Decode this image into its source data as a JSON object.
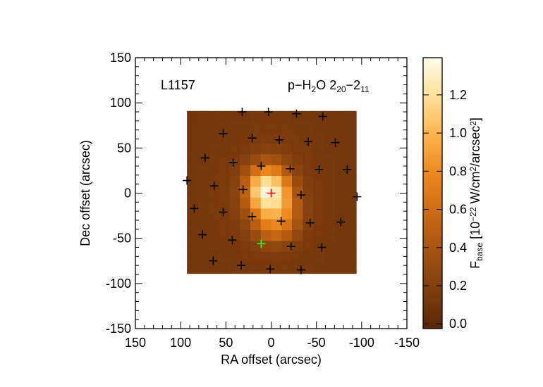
{
  "chart_data": {
    "type": "heatmap",
    "xlabel": "RA offset (arcsec)",
    "ylabel": "Dec offset (arcsec)",
    "xlim": [
      150,
      -150
    ],
    "ylim": [
      -150,
      150
    ],
    "xticks": [
      150,
      100,
      50,
      0,
      -50,
      -100,
      -150
    ],
    "yticks": [
      -150,
      -100,
      -50,
      0,
      50,
      100,
      150
    ],
    "minor_per_major": 5,
    "annotations": [
      {
        "parts": [
          {
            "text": "L1157"
          }
        ]
      },
      {
        "parts": [
          {
            "text": "p−H"
          },
          {
            "text": "2",
            "sub": true
          },
          {
            "text": "O 2"
          },
          {
            "text": "20",
            "sub": true
          },
          {
            "text": "−2"
          },
          {
            "text": "11",
            "sub": true
          }
        ]
      }
    ],
    "colorbar": {
      "clim": [
        -0.025,
        1.395
      ],
      "ticks": [
        {
          "value": 0,
          "label": "0.0"
        },
        0.2,
        0.4,
        0.6,
        0.8,
        {
          "value": 1,
          "label": "1.0"
        },
        1.2
      ],
      "label_parts": [
        {
          "text": "F"
        },
        {
          "text": "base",
          "sub": true
        },
        {
          "text": " [10"
        },
        {
          "text": "−22",
          "sup": true
        },
        {
          "text": " W/cm"
        },
        {
          "text": "2",
          "sup": true
        },
        {
          "text": "/arcsec"
        },
        {
          "text": "2",
          "sup": true
        },
        {
          "text": "]"
        }
      ]
    },
    "map": {
      "x": [
        87,
        75,
        64,
        52,
        40,
        29,
        17,
        6,
        -6,
        -17,
        -29,
        -41,
        -52,
        -64,
        -76,
        -88
      ],
      "y": [
        85,
        73,
        61,
        49,
        37,
        25,
        13,
        1,
        -11,
        -23,
        -35,
        -47,
        -59,
        -71,
        -83
      ],
      "z": [
        [
          0.1,
          0.11,
          0.11,
          0.12,
          0.12,
          0.12,
          0.13,
          0.13,
          0.13,
          0.13,
          0.12,
          0.12,
          0.12,
          0.12,
          0.11,
          0.11
        ],
        [
          0.11,
          0.11,
          0.12,
          0.12,
          0.13,
          0.13,
          0.14,
          0.14,
          0.14,
          0.14,
          0.13,
          0.13,
          0.12,
          0.12,
          0.12,
          0.11
        ],
        [
          0.11,
          0.12,
          0.12,
          0.13,
          0.13,
          0.14,
          0.15,
          0.16,
          0.16,
          0.15,
          0.14,
          0.13,
          0.13,
          0.12,
          0.12,
          0.11
        ],
        [
          0.11,
          0.12,
          0.13,
          0.13,
          0.14,
          0.16,
          0.19,
          0.22,
          0.21,
          0.18,
          0.15,
          0.14,
          0.13,
          0.12,
          0.12,
          0.11
        ],
        [
          0.12,
          0.12,
          0.13,
          0.14,
          0.16,
          0.22,
          0.32,
          0.4,
          0.36,
          0.26,
          0.18,
          0.15,
          0.13,
          0.13,
          0.12,
          0.12
        ],
        [
          0.12,
          0.13,
          0.13,
          0.15,
          0.19,
          0.35,
          0.62,
          0.78,
          0.7,
          0.45,
          0.24,
          0.16,
          0.14,
          0.13,
          0.12,
          0.12
        ],
        [
          0.12,
          0.13,
          0.14,
          0.15,
          0.22,
          0.48,
          0.95,
          1.18,
          1.05,
          0.68,
          0.32,
          0.18,
          0.14,
          0.13,
          0.12,
          0.12
        ],
        [
          0.12,
          0.13,
          0.14,
          0.16,
          0.24,
          0.52,
          1.08,
          1.35,
          1.25,
          0.85,
          0.4,
          0.2,
          0.15,
          0.13,
          0.12,
          0.12
        ],
        [
          0.12,
          0.13,
          0.14,
          0.16,
          0.22,
          0.45,
          0.92,
          1.2,
          1.18,
          0.88,
          0.45,
          0.22,
          0.15,
          0.13,
          0.12,
          0.12
        ],
        [
          0.12,
          0.13,
          0.14,
          0.15,
          0.2,
          0.34,
          0.68,
          0.95,
          0.98,
          0.8,
          0.45,
          0.22,
          0.15,
          0.13,
          0.12,
          0.12
        ],
        [
          0.12,
          0.12,
          0.13,
          0.15,
          0.17,
          0.25,
          0.48,
          0.72,
          0.78,
          0.65,
          0.38,
          0.2,
          0.14,
          0.13,
          0.12,
          0.12
        ],
        [
          0.12,
          0.12,
          0.13,
          0.14,
          0.16,
          0.2,
          0.32,
          0.5,
          0.55,
          0.45,
          0.28,
          0.17,
          0.14,
          0.13,
          0.12,
          0.12
        ],
        [
          0.12,
          0.12,
          0.13,
          0.13,
          0.14,
          0.16,
          0.2,
          0.26,
          0.28,
          0.24,
          0.18,
          0.15,
          0.13,
          0.12,
          0.12,
          0.12
        ],
        [
          0.12,
          0.12,
          0.12,
          0.13,
          0.13,
          0.14,
          0.15,
          0.16,
          0.17,
          0.16,
          0.14,
          0.13,
          0.13,
          0.12,
          0.12,
          0.12
        ],
        [
          0.12,
          0.12,
          0.12,
          0.12,
          0.13,
          0.13,
          0.13,
          0.14,
          0.14,
          0.14,
          0.13,
          0.13,
          0.12,
          0.12,
          0.12,
          0.12
        ]
      ]
    },
    "points": [
      {
        "color": "#000000",
        "x": [
          32,
          3,
          -28,
          -57,
          53,
          21,
          -9,
          -41,
          -71,
          73,
          42,
          11,
          -21,
          -53,
          -84,
          93,
          63,
          31,
          -33,
          -95,
          85,
          53,
          21,
          -11,
          -43,
          -77,
          76,
          43,
          -22,
          -56,
          64,
          33,
          1,
          -33
        ],
        "y": [
          90,
          90,
          88,
          85,
          66,
          61,
          59,
          57,
          56,
          39,
          34,
          30,
          27,
          26,
          26,
          14,
          8,
          4,
          -2,
          -4,
          -17,
          -21,
          -26,
          -31,
          -33,
          -32,
          -46,
          -52,
          -59,
          -60,
          -75,
          -80,
          -84,
          -85
        ]
      },
      {
        "color": "#ff0000",
        "x": [
          0
        ],
        "y": [
          0
        ]
      },
      {
        "color": "#33ff33",
        "x": [
          11
        ],
        "y": [
          -56
        ]
      }
    ]
  }
}
